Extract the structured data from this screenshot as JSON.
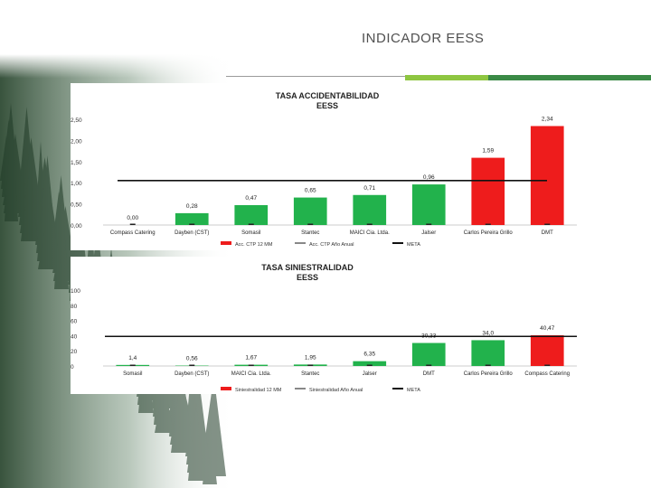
{
  "page": {
    "title": "INDICADOR EESS"
  },
  "colors": {
    "green": "#22b24c",
    "red": "#ee1c1c",
    "meta_line": "#111111",
    "rule_dark": "#3a8a46",
    "rule_light": "#8ec641",
    "rule_gray": "#9a9a9a"
  },
  "chart_data": [
    {
      "type": "bar",
      "title_lines": [
        "TASA ACCIDENTABILIDAD",
        "EESS"
      ],
      "categories": [
        "Compass Catering",
        "Dayben (CST)",
        "Somasil",
        "Stantec",
        "MAICI Cia. Ltda.",
        "Jalser",
        "Carlos Pereira Grillo",
        "DMT"
      ],
      "values": [
        0.0,
        0.28,
        0.47,
        0.65,
        0.71,
        0.96,
        1.59,
        2.34
      ],
      "value_labels": [
        "0,00",
        "0,28",
        "0,47",
        "0,65",
        "0,71",
        "0,96",
        "1,59",
        "2,34"
      ],
      "bar_colors": [
        "green",
        "green",
        "green",
        "green",
        "green",
        "green",
        "red",
        "red"
      ],
      "meta": 1.05,
      "ylim": [
        0,
        2.5
      ],
      "yticks": [
        0.0,
        0.5,
        1.0,
        1.5,
        2.0,
        2.5
      ],
      "ytick_labels": [
        "0,00",
        "0,50",
        "1,00",
        "1,50",
        "2,00",
        "2,50"
      ],
      "legend": [
        "Acc. CTP 12 MM",
        "Acc. CTP Año Anual",
        "META"
      ],
      "legend_position": "bottom",
      "grid": false
    },
    {
      "type": "bar",
      "title_lines": [
        "TASA SINIESTRALIDAD",
        "EESS"
      ],
      "categories": [
        "Somasil",
        "Dayben (CST)",
        "MAICI Cia. Ltda.",
        "Stantec",
        "Jalser",
        "DMT",
        "Carlos Pereira Grillo",
        "Compass Catering"
      ],
      "values": [
        1.4,
        0.56,
        1.67,
        1.95,
        6.35,
        30.33,
        34.0,
        40.47
      ],
      "value_labels": [
        "1,4",
        "0,56",
        "1,67",
        "1,95",
        "6,35",
        "30,33",
        "34,0",
        "40,47"
      ],
      "bar_colors": [
        "green",
        "green",
        "green",
        "green",
        "green",
        "green",
        "green",
        "red"
      ],
      "meta": 39,
      "ylim": [
        0,
        100
      ],
      "yticks": [
        0,
        20,
        40,
        60,
        80,
        100
      ],
      "ytick_labels": [
        "0",
        "20",
        "40",
        "60",
        "80",
        "100"
      ],
      "legend": [
        "Siniestralidad 12 MM",
        "Siniestralidad Año Anual",
        "META"
      ],
      "legend_position": "bottom",
      "grid": false
    }
  ]
}
